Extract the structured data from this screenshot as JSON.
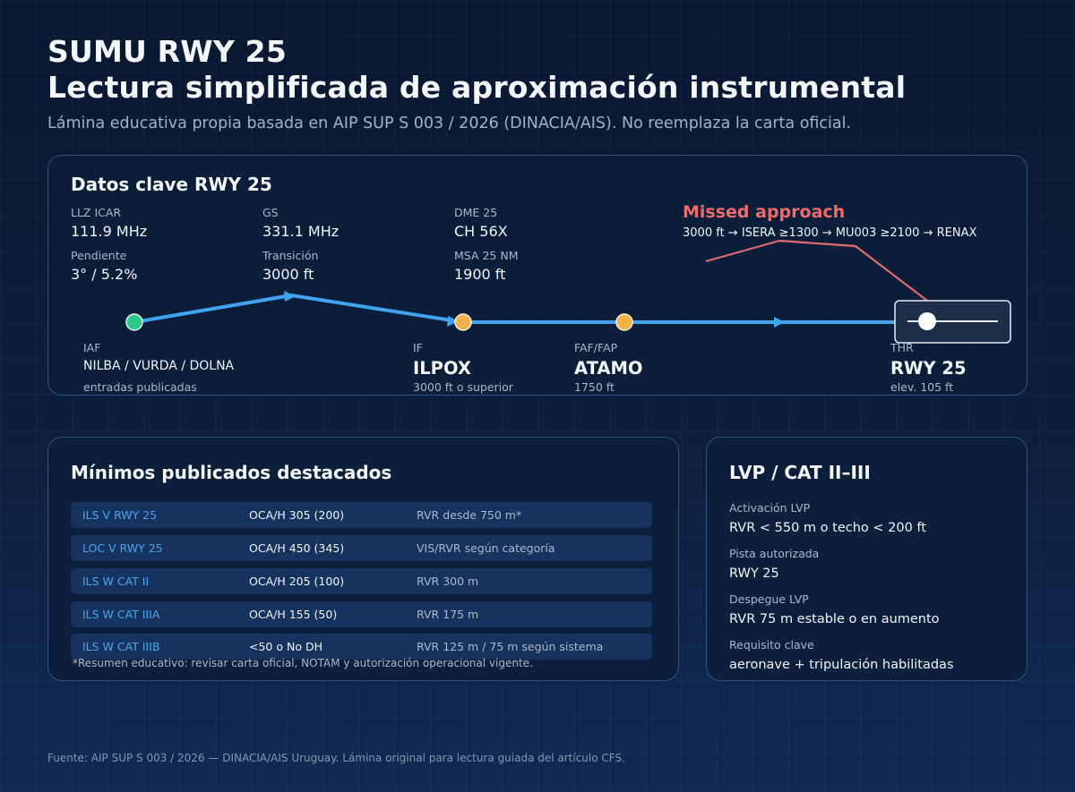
{
  "header": {
    "title_line1": "SUMU RWY 25",
    "title_line2": "Lectura simplificada de aproximación instrumental",
    "subtitle": "Lámina educativa propia basada en AIP SUP S 003 / 2026 (DINACIA/AIS). No reemplaza la carta oficial."
  },
  "key_data": {
    "title": "Datos clave RWY 25",
    "items": [
      {
        "label": "LLZ ICAR",
        "value": "111.9 MHz"
      },
      {
        "label": "GS",
        "value": "331.1 MHz"
      },
      {
        "label": "DME 25",
        "value": "CH 56X"
      },
      {
        "label": "Pendiente",
        "value": "3° / 5.2%"
      },
      {
        "label": "Transición",
        "value": "3000 ft"
      },
      {
        "label": "MSA 25 NM",
        "value": "1900 ft"
      }
    ]
  },
  "missed_approach": {
    "title": "Missed approach",
    "route": "3000 ft → ISERA ≥1300 → MU003 ≥2100 → RENAX"
  },
  "profile": {
    "fixes": [
      {
        "role": "IAF",
        "name": "NILBA / VURDA / DOLNA",
        "detail": "entradas publicadas",
        "color": "#2ec98a"
      },
      {
        "role": "IF",
        "name": "ILPOX",
        "detail": "3000 ft o superior",
        "color": "#f2b24b"
      },
      {
        "role": "FAF/FAP",
        "name": "ATAMO",
        "detail": "1750 ft",
        "color": "#f2b24b"
      },
      {
        "role": "THR",
        "name": "RWY 25",
        "detail": "elev. 105 ft",
        "color": "#ffffff"
      }
    ],
    "path_color": "#3fa3f0",
    "missed_color": "#e06a6f"
  },
  "minimums": {
    "title": "Mínimos publicados destacados",
    "rows": [
      {
        "name": "ILS V RWY 25",
        "oca": "OCA/H 305 (200)",
        "rvr": "RVR desde 750 m*"
      },
      {
        "name": "LOC V RWY 25",
        "oca": "OCA/H 450 (345)",
        "rvr": "VIS/RVR según categoría"
      },
      {
        "name": "ILS W CAT II",
        "oca": "OCA/H 205 (100)",
        "rvr": "RVR 300 m"
      },
      {
        "name": "ILS W CAT IIIA",
        "oca": "OCA/H 155 (50)",
        "rvr": "RVR 175 m"
      },
      {
        "name": "ILS W CAT IIIB",
        "oca": "<50 o No DH",
        "rvr": "RVR 125 m / 75 m según sistema"
      }
    ],
    "note": "*Resumen educativo: revisar carta oficial, NOTAM y autorización operacional vigente."
  },
  "lvp": {
    "title": "LVP / CAT II–III",
    "items": [
      {
        "label": "Activación LVP",
        "value": "RVR < 550 m o techo < 200 ft"
      },
      {
        "label": "Pista autorizada",
        "value": "RWY 25"
      },
      {
        "label": "Despegue LVP",
        "value": "RVR 75 m estable o en aumento"
      },
      {
        "label": "Requisito clave",
        "value": "aeronave + tripulación habilitadas"
      }
    ]
  },
  "footer": {
    "source": "Fuente: AIP SUP S 003 / 2026 — DINACIA/AIS Uruguay. Lámina original para lectura guiada del artículo CFS."
  }
}
